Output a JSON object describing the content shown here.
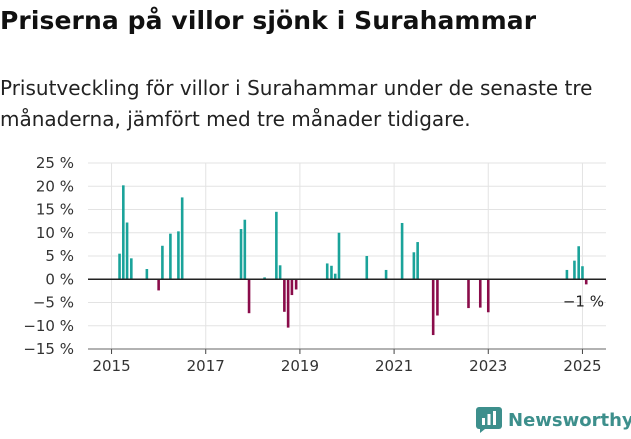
{
  "title": "Priserna på villor sjönk i Surahammar",
  "subtitle": "Prisutveckling för villor i Surahammar under de senaste tre månaderna, jämfört med tre månader tidigare.",
  "brand": {
    "name": "Newsworthy",
    "icon": "newsworthy-logo-icon"
  },
  "colors": {
    "positive": "#1aa39a",
    "negative": "#8a0c4a",
    "baseline": "#222222",
    "grid": "#e3e3e3"
  },
  "chart_data": {
    "type": "bar",
    "xlabel": "",
    "ylabel": "",
    "ylim": [
      -15,
      25
    ],
    "xlim": [
      2014.5,
      2025.5
    ],
    "yticks": [
      25,
      20,
      15,
      10,
      5,
      0,
      -5,
      -10,
      -15
    ],
    "ytick_labels": [
      "25 %",
      "20 %",
      "15 %",
      "10 %",
      "5 %",
      "0 %",
      "−5 %",
      "−10 %",
      "−15 %"
    ],
    "xticks": [
      2015,
      2017,
      2019,
      2021,
      2023,
      2025
    ],
    "xtick_labels": [
      "2015",
      "2017",
      "2019",
      "2021",
      "2023",
      "2025"
    ],
    "grid": true,
    "end_label": "−1 %",
    "series": [
      {
        "x": [
          2015.17,
          2015.25,
          2015.33,
          2015.42,
          2015.75,
          2016.0,
          2016.08,
          2016.25,
          2016.42,
          2016.5,
          2017.75,
          2017.83,
          2017.92,
          2018.25,
          2018.5,
          2018.58,
          2018.67,
          2018.75,
          2018.83,
          2018.92,
          2019.58,
          2019.67,
          2019.75,
          2019.83,
          2020.42,
          2020.83,
          2021.17,
          2021.42,
          2021.5,
          2021.83,
          2021.92,
          2022.58,
          2022.83,
          2023.0,
          2024.67,
          2024.83,
          2024.92,
          2025.0,
          2025.08
        ],
        "values": [
          5.5,
          20.2,
          12.2,
          4.5,
          2.2,
          -2.4,
          7.2,
          9.8,
          10.3,
          17.6,
          10.8,
          12.8,
          -7.3,
          0.4,
          14.5,
          3.0,
          -7.0,
          -10.4,
          -3.4,
          -2.2,
          3.4,
          2.9,
          1.2,
          10.0,
          5.0,
          2.0,
          12.1,
          5.8,
          8.0,
          -12.0,
          -7.8,
          -6.2,
          -6.1,
          -7.1,
          2.0,
          4.0,
          7.1,
          2.8,
          -1.1
        ]
      }
    ]
  }
}
